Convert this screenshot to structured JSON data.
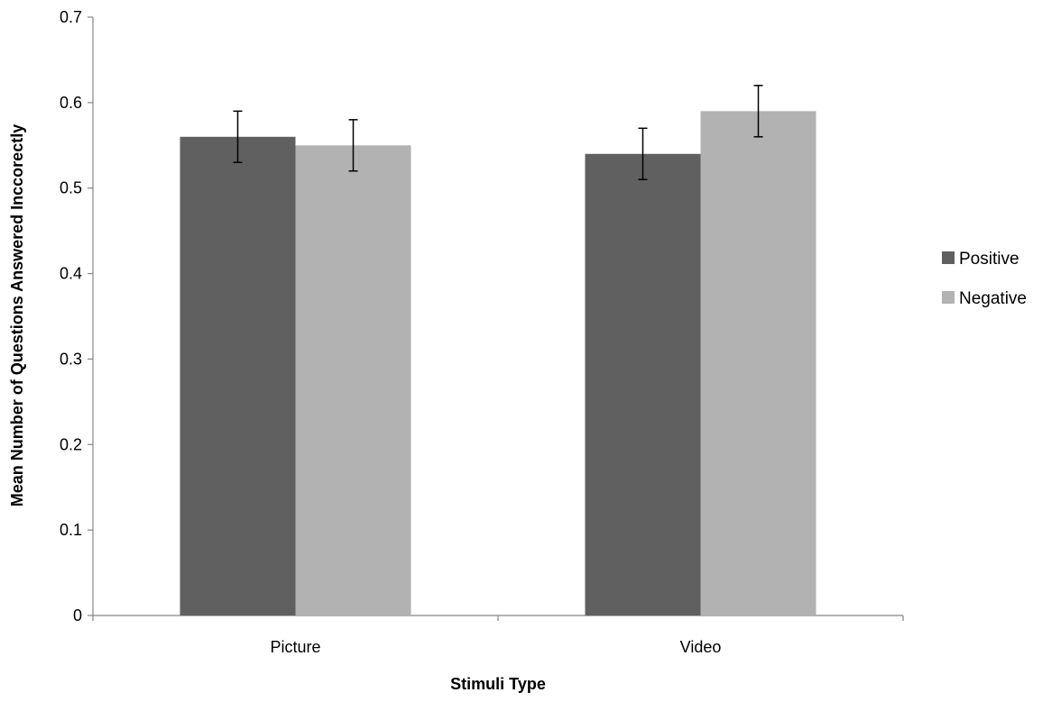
{
  "chart_data": {
    "type": "bar",
    "title": "",
    "xlabel": "Stimuli Type",
    "ylabel": "Mean Number of Questions Answered Inccorectly",
    "categories": [
      "Picture",
      "Video"
    ],
    "series": [
      {
        "name": "Positive",
        "color": "#606060",
        "values": [
          0.56,
          0.54
        ],
        "error": [
          0.03,
          0.03
        ]
      },
      {
        "name": "Negative",
        "color": "#b2b2b2",
        "values": [
          0.55,
          0.59
        ],
        "error": [
          0.03,
          0.03
        ]
      }
    ],
    "ylim": [
      0,
      0.7
    ],
    "yticks": [
      "0",
      "0.1",
      "0.2",
      "0.3",
      "0.4",
      "0.5",
      "0.6",
      "0.7"
    ],
    "grid": false,
    "legend_position": "right"
  }
}
